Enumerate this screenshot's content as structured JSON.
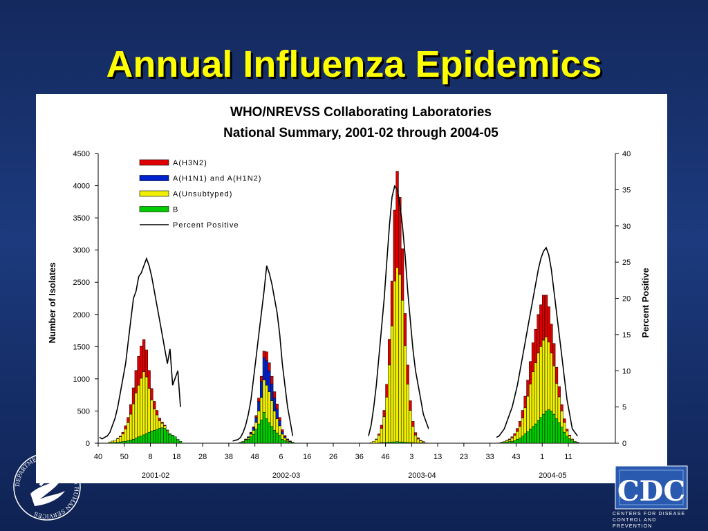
{
  "slide": {
    "title": "Annual Influenza Epidemics"
  },
  "logos": {
    "cdc_text": "CDC",
    "cdc_line1": "Centers for Disease",
    "cdc_line2": "Control and Prevention",
    "hhs_text": "DEPARTMENT OF HEALTH & HUMAN SERVICES"
  },
  "colors": {
    "background": "#1c3a7d",
    "title": "#ffff00",
    "h3n2": "#e00000",
    "h1n1": "#0022cc",
    "unsubtyped": "#f0f000",
    "b": "#00cc00",
    "line": "#000000"
  },
  "chart_data": {
    "type": "bar",
    "title_lines": [
      "WHO/NREVSS Collaborating Laboratories",
      "National Summary, 2001-02 through 2004-05"
    ],
    "ylabel": "Number of Isolates",
    "y2label": "Percent Positive",
    "ylim": [
      0,
      4500
    ],
    "y2lim": [
      0,
      40
    ],
    "y_ticks": [
      "0",
      "500",
      "1000",
      "1500",
      "2000",
      "2500",
      "3000",
      "3500",
      "4000",
      "4500"
    ],
    "y2_ticks": [
      "0",
      "5",
      "10",
      "15",
      "20",
      "25",
      "30",
      "35",
      "40"
    ],
    "x_tick_labels": [
      "40",
      "50",
      "8",
      "18",
      "28",
      "38",
      "48",
      "6",
      "16",
      "26",
      "36",
      "46",
      "3",
      "13",
      "23",
      "33",
      "43",
      "1",
      "11"
    ],
    "season_labels": [
      "2001-02",
      "2002-03",
      "2003-04",
      "2004-05"
    ],
    "legend": [
      "A(H3N2)",
      "A(H1N1) and A(H1N2)",
      "A(Unsubtyped)",
      "B",
      "Percent Positive"
    ],
    "legend_position": "top-left",
    "series_names": [
      "A(H3N2)",
      "A(H1N1) and A(H1N2)",
      "A(Unsubtyped)",
      "B"
    ],
    "seasons": [
      {
        "label": "2001-02",
        "start_index": 0,
        "bars": [
          [
            0,
            0,
            0,
            0
          ],
          [
            0,
            0,
            0,
            0
          ],
          [
            0,
            0,
            0,
            0
          ],
          [
            0,
            0,
            0,
            0
          ],
          [
            0,
            0,
            15,
            5
          ],
          [
            0,
            0,
            25,
            8
          ],
          [
            0,
            0,
            35,
            12
          ],
          [
            5,
            0,
            55,
            15
          ],
          [
            10,
            0,
            80,
            20
          ],
          [
            25,
            0,
            120,
            25
          ],
          [
            50,
            0,
            190,
            30
          ],
          [
            80,
            0,
            280,
            40
          ],
          [
            150,
            0,
            400,
            50
          ],
          [
            250,
            0,
            550,
            60
          ],
          [
            350,
            0,
            700,
            80
          ],
          [
            450,
            0,
            800,
            100
          ],
          [
            500,
            0,
            900,
            110
          ],
          [
            500,
            0,
            980,
            130
          ],
          [
            420,
            0,
            880,
            150
          ],
          [
            280,
            0,
            680,
            170
          ],
          [
            180,
            0,
            480,
            190
          ],
          [
            120,
            0,
            330,
            200
          ],
          [
            70,
            0,
            230,
            210
          ],
          [
            40,
            0,
            120,
            230
          ],
          [
            20,
            0,
            70,
            240
          ],
          [
            10,
            0,
            40,
            230
          ],
          [
            5,
            0,
            20,
            180
          ],
          [
            0,
            0,
            10,
            140
          ],
          [
            0,
            0,
            5,
            120
          ],
          [
            0,
            0,
            0,
            100
          ],
          [
            0,
            0,
            0,
            60
          ],
          [
            0,
            0,
            0,
            30
          ]
        ],
        "pct": [
          0.8,
          0.6,
          0.8,
          1,
          1.5,
          2.5,
          3.5,
          5,
          7,
          9,
          11,
          14,
          17,
          20,
          21,
          23,
          23.5,
          24.5,
          25.5,
          24.5,
          23,
          21,
          19,
          17,
          15,
          13,
          11,
          13,
          8,
          9,
          10,
          5
        ]
      },
      {
        "label": "2002-03",
        "start_index": 51,
        "bars": [
          [
            0,
            0,
            0,
            0
          ],
          [
            0,
            0,
            0,
            0
          ],
          [
            0,
            0,
            0,
            0
          ],
          [
            0,
            0,
            5,
            8
          ],
          [
            0,
            0,
            10,
            20
          ],
          [
            5,
            5,
            15,
            40
          ],
          [
            5,
            10,
            25,
            60
          ],
          [
            10,
            20,
            40,
            100
          ],
          [
            15,
            40,
            60,
            140
          ],
          [
            30,
            80,
            100,
            220
          ],
          [
            50,
            150,
            200,
            300
          ],
          [
            80,
            250,
            350,
            360
          ],
          [
            100,
            350,
            500,
            480
          ],
          [
            140,
            380,
            520,
            380
          ],
          [
            130,
            320,
            480,
            320
          ],
          [
            120,
            260,
            400,
            260
          ],
          [
            100,
            200,
            300,
            200
          ],
          [
            80,
            150,
            220,
            160
          ],
          [
            50,
            80,
            150,
            120
          ],
          [
            30,
            40,
            80,
            60
          ],
          [
            20,
            20,
            40,
            40
          ],
          [
            10,
            10,
            20,
            25
          ],
          [
            5,
            5,
            10,
            15
          ],
          [
            0,
            0,
            5,
            10
          ]
        ],
        "pct": [
          0.3,
          0.4,
          0.5,
          0.8,
          1.5,
          2.5,
          4,
          6,
          9,
          12,
          15,
          18,
          21,
          24.5,
          23.5,
          22,
          20,
          18,
          15,
          11,
          8,
          5,
          3,
          1
        ]
      },
      {
        "label": "2003-04",
        "start_index": 103,
        "bars": [
          [
            0,
            0,
            0,
            0
          ],
          [
            0,
            0,
            10,
            0
          ],
          [
            0,
            0,
            30,
            0
          ],
          [
            5,
            0,
            60,
            0
          ],
          [
            20,
            0,
            120,
            5
          ],
          [
            50,
            0,
            220,
            10
          ],
          [
            100,
            0,
            400,
            10
          ],
          [
            200,
            0,
            700,
            15
          ],
          [
            400,
            0,
            1200,
            15
          ],
          [
            700,
            0,
            1800,
            20
          ],
          [
            1100,
            0,
            2500,
            20
          ],
          [
            1500,
            0,
            2700,
            25
          ],
          [
            1200,
            0,
            2600,
            20
          ],
          [
            800,
            0,
            2200,
            20
          ],
          [
            500,
            0,
            1500,
            15
          ],
          [
            300,
            0,
            900,
            15
          ],
          [
            150,
            0,
            500,
            10
          ],
          [
            80,
            0,
            250,
            10
          ],
          [
            40,
            0,
            120,
            5
          ],
          [
            20,
            0,
            60,
            5
          ],
          [
            10,
            0,
            30,
            5
          ],
          [
            5,
            0,
            15,
            5
          ],
          [
            0,
            0,
            5,
            0
          ],
          [
            0,
            0,
            0,
            0
          ]
        ],
        "pct": [
          1,
          2.5,
          5,
          8,
          12,
          16,
          20,
          25,
          30,
          34,
          35.5,
          35,
          33,
          30,
          26,
          21,
          17,
          13,
          10,
          8,
          6,
          4,
          3,
          2
        ]
      },
      {
        "label": "2004-05",
        "start_index": 152,
        "bars": [
          [
            0,
            0,
            0,
            0
          ],
          [
            0,
            0,
            0,
            5
          ],
          [
            0,
            0,
            5,
            10
          ],
          [
            0,
            0,
            10,
            15
          ],
          [
            5,
            0,
            20,
            20
          ],
          [
            10,
            0,
            30,
            25
          ],
          [
            20,
            0,
            50,
            30
          ],
          [
            30,
            0,
            80,
            40
          ],
          [
            50,
            0,
            120,
            60
          ],
          [
            80,
            0,
            180,
            80
          ],
          [
            120,
            0,
            280,
            110
          ],
          [
            180,
            0,
            400,
            150
          ],
          [
            250,
            0,
            550,
            180
          ],
          [
            350,
            0,
            700,
            220
          ],
          [
            450,
            0,
            850,
            260
          ],
          [
            520,
            0,
            950,
            300
          ],
          [
            600,
            0,
            1050,
            350
          ],
          [
            650,
            0,
            1100,
            400
          ],
          [
            700,
            0,
            1150,
            450
          ],
          [
            650,
            0,
            1150,
            500
          ],
          [
            550,
            0,
            1050,
            520
          ],
          [
            450,
            0,
            900,
            500
          ],
          [
            350,
            0,
            750,
            450
          ],
          [
            250,
            0,
            550,
            380
          ],
          [
            160,
            0,
            400,
            320
          ],
          [
            100,
            0,
            250,
            250
          ],
          [
            60,
            0,
            150,
            170
          ],
          [
            30,
            0,
            80,
            110
          ],
          [
            15,
            0,
            40,
            70
          ],
          [
            5,
            0,
            20,
            40
          ],
          [
            0,
            0,
            10,
            20
          ],
          [
            0,
            0,
            5,
            10
          ]
        ],
        "pct": [
          0.8,
          1,
          1.5,
          2,
          3,
          4,
          5,
          6.5,
          8,
          10,
          12,
          14,
          16,
          18,
          20,
          22,
          24,
          25.5,
          26.5,
          27,
          26,
          24,
          21,
          18,
          15,
          12,
          9,
          6,
          4,
          2,
          1.5,
          1
        ]
      }
    ]
  }
}
